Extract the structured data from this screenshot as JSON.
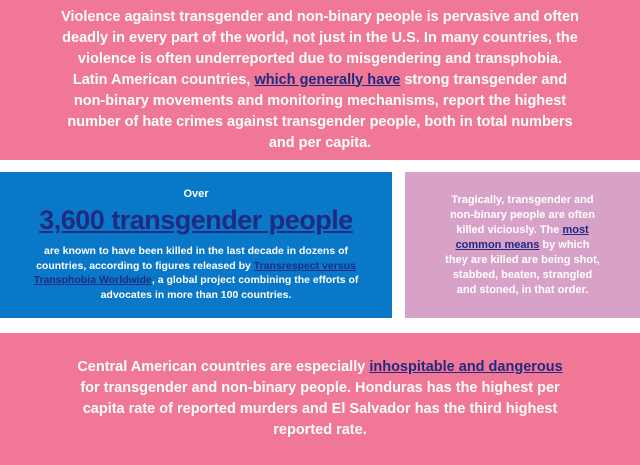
{
  "intro": {
    "before": "Violence against transgender and non-binary people is pervasive and often deadly in every part of the world, not just in the U.S. In many countries, the violence is often underreported due to misgendering and transphobia. Latin American countries, ",
    "link": "which generally have",
    "after": " strong transgender and non-binary movements and monitoring mechanisms, report the highest number of hate crimes against transgender people, both in total numbers and per capita."
  },
  "stat": {
    "over": "Over",
    "headline": "3,600 transgender people",
    "before": "are known to have been killed in the last decade in dozens of countries, according to figures released by ",
    "link": "Transrespect versus Transphobia Worldwide",
    "after": ", a global project combining the efforts of advocates in more than 100 countries."
  },
  "means": {
    "before": "Tragically, transgender and non-binary people are often killed viciously. The ",
    "link": "most common means",
    "after": " by which they are killed are being shot, stabbed, beaten, strangled and stoned, in that order."
  },
  "central": {
    "before": "Central American countries are especially ",
    "link": "inhospitable and dangerous",
    "after": " for transgender and non-binary people. Honduras has the highest per capita rate of reported murders and El Salvador has the third highest reported rate."
  }
}
